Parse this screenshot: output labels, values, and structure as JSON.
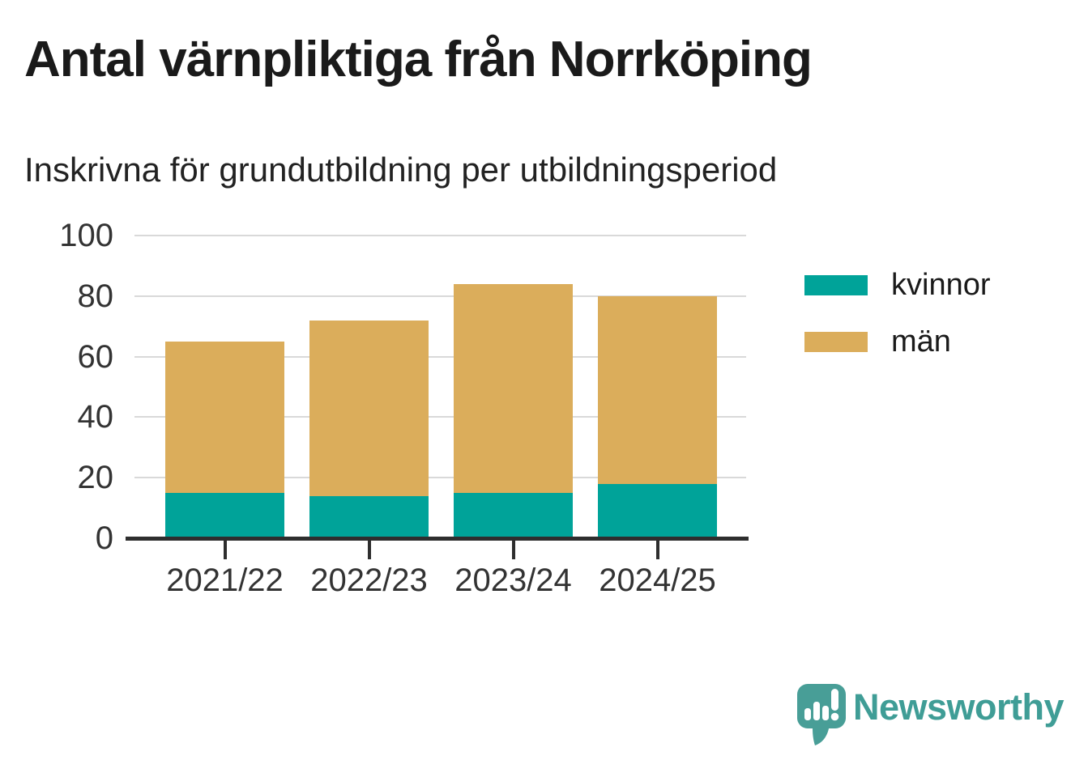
{
  "title": "Antal värnpliktiga från Norrköping",
  "subtitle": "Inskrivna för grundutbildning per utbildningsperiod",
  "branding": {
    "logo_text": "Newsworthy"
  },
  "colors": {
    "kvinnor": "#00a399",
    "man": "#dbad5b",
    "brand_teal": "#489e97",
    "brand_text": "#3f9d96",
    "axis": "#2e2e2e",
    "grid": "#d9d9d9",
    "tick_text": "#333333",
    "title_text": "#1a1a1a"
  },
  "chart_data": {
    "type": "bar",
    "stacked": true,
    "title": "Antal värnpliktiga från Norrköping",
    "subtitle": "Inskrivna för grundutbildning per utbildningsperiod",
    "categories": [
      "2021/22",
      "2022/23",
      "2023/24",
      "2024/25"
    ],
    "series": [
      {
        "name": "kvinnor",
        "color": "#00a399",
        "values": [
          15,
          14,
          15,
          18
        ]
      },
      {
        "name": "män",
        "color": "#dbad5b",
        "values": [
          50,
          58,
          69,
          62
        ]
      }
    ],
    "totals": [
      65,
      72,
      84,
      80
    ],
    "xlabel": "",
    "ylabel": "",
    "ylim": [
      0,
      100
    ],
    "yticks": [
      0,
      20,
      40,
      60,
      80,
      100
    ],
    "grid": "horizontal",
    "legend_position": "right"
  },
  "legend": {
    "items": [
      {
        "label": "kvinnor",
        "color": "#00a399"
      },
      {
        "label": "män",
        "color": "#dbad5b"
      }
    ]
  }
}
